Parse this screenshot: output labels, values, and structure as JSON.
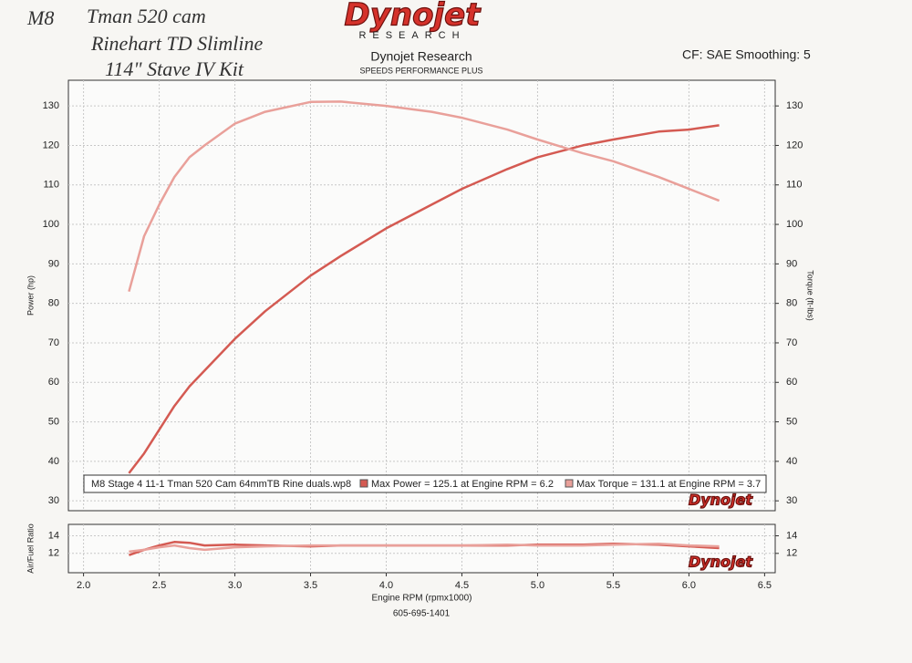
{
  "header": {
    "notes": [
      "M8",
      "Tman 520 cam",
      "Rinehart TD Slimline",
      "114\" Stave IV Kit"
    ],
    "logo": "Dynojet",
    "logo_sub": "RESEARCH",
    "title": "Dynojet Research",
    "subtitle": "SPEEDS PERFORMANCE PLUS",
    "settings": "CF: SAE Smoothing: 5"
  },
  "footer": "605-695-1401",
  "chart_data": [
    {
      "type": "line",
      "x": [
        2.3,
        2.4,
        2.5,
        2.6,
        2.7,
        2.8,
        3.0,
        3.2,
        3.5,
        3.7,
        4.0,
        4.3,
        4.5,
        4.8,
        5.0,
        5.3,
        5.5,
        5.8,
        6.0,
        6.2
      ],
      "xlim": [
        1.9,
        6.57
      ],
      "xticks": [
        2,
        2.5,
        3,
        3.5,
        4,
        4.5,
        5,
        5.5,
        6,
        6.5
      ],
      "ylim": [
        27.5,
        136.5
      ],
      "yticks": [
        30,
        40,
        50,
        60,
        70,
        80,
        90,
        100,
        110,
        120,
        130
      ],
      "y2lim": [
        27.5,
        136.5
      ],
      "y2ticks": [
        30,
        40,
        50,
        60,
        70,
        80,
        90,
        100,
        110,
        120,
        130
      ],
      "y_label": "Power (hp)",
      "y2_label": "Torque (ft-lbs)",
      "grid": true,
      "legend_title": "M8 Stage 4 11-1 Tman 520 Cam 64mmTB Rine duals.wp8",
      "series": [
        {
          "name": "Max Power = 125.1 at Engine RPM = 6.2",
          "color": "#d45a52",
          "values": [
            37,
            42,
            48,
            54,
            59,
            63,
            71,
            78,
            87,
            92,
            99,
            105,
            109,
            114,
            117,
            120,
            121.5,
            123.5,
            124,
            125.1
          ]
        },
        {
          "name": "Max Torque = 131.1 at Engine RPM = 3.7",
          "color": "#e9a09a",
          "axis": "y2",
          "values": [
            83,
            97,
            105,
            112,
            117,
            120,
            125.5,
            128.5,
            131,
            131.1,
            130,
            128.5,
            127,
            124,
            121.5,
            118,
            116,
            112,
            109,
            106
          ]
        }
      ]
    },
    {
      "type": "line",
      "x": [
        2.3,
        2.4,
        2.5,
        2.6,
        2.7,
        2.8,
        3.0,
        3.2,
        3.5,
        3.7,
        4.0,
        4.3,
        4.5,
        4.8,
        5.0,
        5.3,
        5.5,
        5.8,
        6.0,
        6.2
      ],
      "xlim": [
        1.9,
        6.57
      ],
      "xticks": [
        {
          "value": 2,
          "label": "2.0"
        },
        {
          "value": 2.5,
          "label": "2.5"
        },
        {
          "value": 3,
          "label": "3.0"
        },
        {
          "value": 3.5,
          "label": "3.5"
        },
        {
          "value": 4,
          "label": "4.0"
        },
        {
          "value": 4.5,
          "label": "4.5"
        },
        {
          "value": 5,
          "label": "5.0"
        },
        {
          "value": 5.5,
          "label": "5.5"
        },
        {
          "value": 6,
          "label": "6.0"
        },
        {
          "value": 6.5,
          "label": "6.5"
        }
      ],
      "ylim": [
        9.8,
        15.3
      ],
      "yticks": [
        12,
        14
      ],
      "y2lim": [
        9.8,
        15.3
      ],
      "y2ticks": [
        12,
        14
      ],
      "y_label": "Air/Fuel Ratio",
      "x_label": "Engine RPM (rpmx1000)",
      "grid": true,
      "series": [
        {
          "color": "#d45a52",
          "values": [
            11.8,
            12.4,
            12.9,
            13.3,
            13.2,
            12.9,
            13.0,
            12.9,
            12.8,
            12.9,
            12.9,
            12.9,
            12.9,
            12.9,
            13.0,
            13.0,
            13.1,
            13.0,
            12.8,
            12.6
          ]
        },
        {
          "color": "#e9a09a",
          "values": [
            12.2,
            12.4,
            12.7,
            12.9,
            12.6,
            12.4,
            12.7,
            12.8,
            12.9,
            12.9,
            12.9,
            12.9,
            12.9,
            13.0,
            12.9,
            12.9,
            13.0,
            13.1,
            12.9,
            12.8
          ]
        }
      ]
    }
  ]
}
